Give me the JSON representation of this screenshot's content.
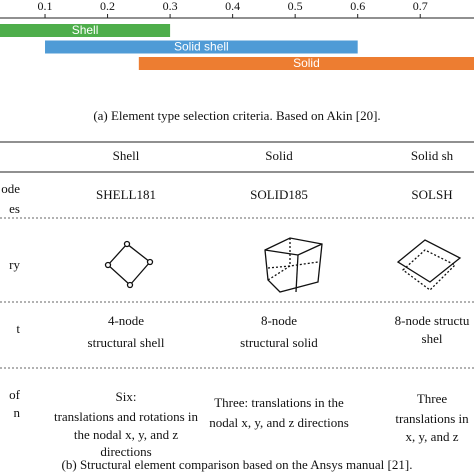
{
  "figure_a": {
    "type": "range-bar",
    "xlim": [
      0.028,
      0.786
    ],
    "xticks": [
      0.1,
      0.2,
      0.3,
      0.4,
      0.5,
      0.6,
      0.7
    ],
    "bars": [
      {
        "name": "Shell",
        "start": 0,
        "end": 0.3,
        "color": "#4eae4b"
      },
      {
        "name": "Solid shell",
        "start": 0.1,
        "end": 0.6,
        "color": "#4f9bd6"
      },
      {
        "name": "Solid",
        "start": 0.25,
        "end": 0.8,
        "color": "#ed7d31"
      }
    ],
    "caption": "(a) Element type selection criteria. Based on Akin [20]."
  },
  "table": {
    "header": [
      "Shell",
      "Solid",
      "Solid sh"
    ],
    "rows": [
      {
        "label": [
          "ode",
          "es"
        ],
        "cells": [
          [
            "SHELL181"
          ],
          [
            "SOLID185"
          ],
          [
            "SOLSH"
          ]
        ]
      },
      {
        "label": [
          "ry"
        ],
        "cells": [
          [],
          [],
          []
        ]
      },
      {
        "label": [
          "t"
        ],
        "cells": [
          [
            "4-node",
            "structural shell"
          ],
          [
            "8-node",
            "structural solid"
          ],
          [
            "8-node structu",
            "shel"
          ]
        ]
      },
      {
        "label": [
          "of",
          "n"
        ],
        "cells": [
          [
            "Six:",
            "translations and rotations in",
            "the nodal x, y, and z",
            "directions"
          ],
          [
            "Three: translations in the",
            "nodal x, y, and z directions"
          ],
          [
            "Three",
            "translations in",
            "x, y, and z"
          ]
        ]
      }
    ],
    "caption": "(b) Structural element comparison based on the Ansys manual [21]."
  }
}
